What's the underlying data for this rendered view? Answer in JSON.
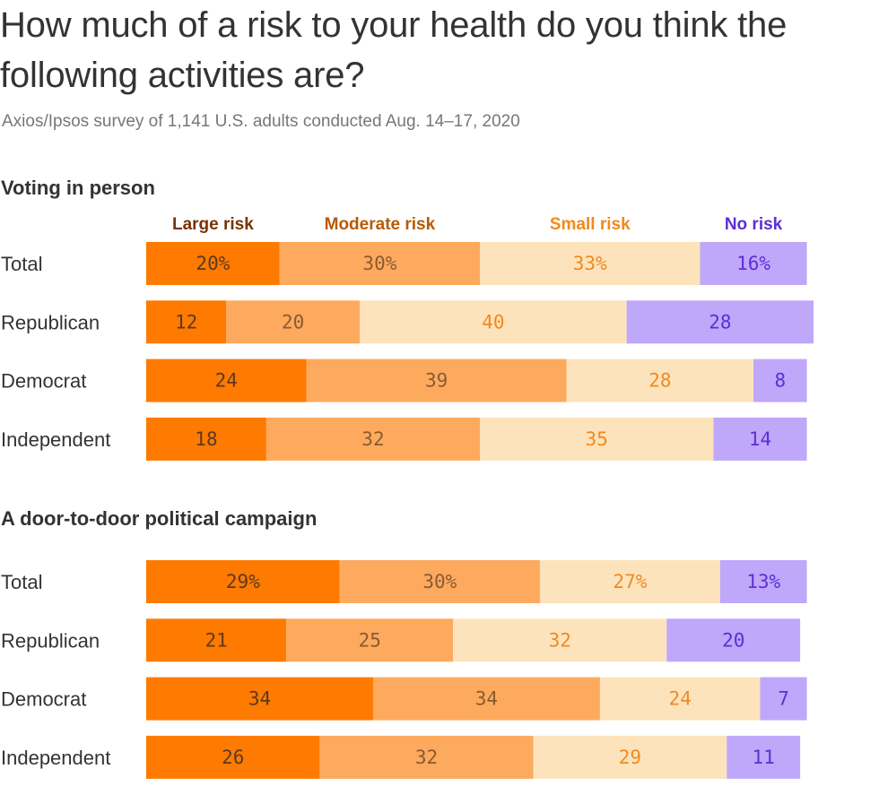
{
  "header": {
    "title": "How much of a risk to your health do you think the following activities are?",
    "subtitle": "Axios/Ipsos survey of 1,141 U.S. adults conducted Aug. 14–17, 2020"
  },
  "colors": {
    "large": "#ff7a00",
    "moderate": "#fdaa5e",
    "small": "#fde3bb",
    "none": "#bfa7fa",
    "large_text": "#7a3300",
    "moderate_text": "#b95a00",
    "small_text": "#f08a1c",
    "none_text": "#5b2fd6",
    "value_large": "#5a3a20",
    "value_moderate": "#8a5a30",
    "value_small": "#ef8a22",
    "value_none": "#5b2fd6"
  },
  "chart_data": [
    {
      "type": "bar",
      "orientation": "horizontal",
      "stacked": true,
      "title": "Voting in person",
      "categories": [
        "Total",
        "Republican",
        "Democrat",
        "Independent"
      ],
      "series": [
        {
          "name": "Large risk",
          "values": [
            20,
            12,
            24,
            18
          ],
          "labels": [
            "20%",
            "12",
            "24",
            "18"
          ]
        },
        {
          "name": "Moderate risk",
          "values": [
            30,
            20,
            39,
            32
          ],
          "labels": [
            "30%",
            "20",
            "39",
            "32"
          ]
        },
        {
          "name": "Small risk",
          "values": [
            33,
            40,
            28,
            35
          ],
          "labels": [
            "33%",
            "40",
            "28",
            "35"
          ]
        },
        {
          "name": "No risk",
          "values": [
            16,
            28,
            8,
            14
          ],
          "labels": [
            "16%",
            "28",
            "8",
            "14"
          ]
        }
      ],
      "legend": "top"
    },
    {
      "type": "bar",
      "orientation": "horizontal",
      "stacked": true,
      "title": "A door-to-door political campaign",
      "categories": [
        "Total",
        "Republican",
        "Democrat",
        "Independent"
      ],
      "series": [
        {
          "name": "Large risk",
          "values": [
            29,
            21,
            34,
            26
          ],
          "labels": [
            "29%",
            "21",
            "34",
            "26"
          ]
        },
        {
          "name": "Moderate risk",
          "values": [
            30,
            25,
            34,
            32
          ],
          "labels": [
            "30%",
            "25",
            "34",
            "32"
          ]
        },
        {
          "name": "Small risk",
          "values": [
            27,
            32,
            24,
            29
          ],
          "labels": [
            "27%",
            "32",
            "24",
            "29"
          ]
        },
        {
          "name": "No risk",
          "values": [
            13,
            20,
            7,
            11
          ],
          "labels": [
            "13%",
            "20",
            "7",
            "11"
          ]
        }
      ]
    }
  ]
}
